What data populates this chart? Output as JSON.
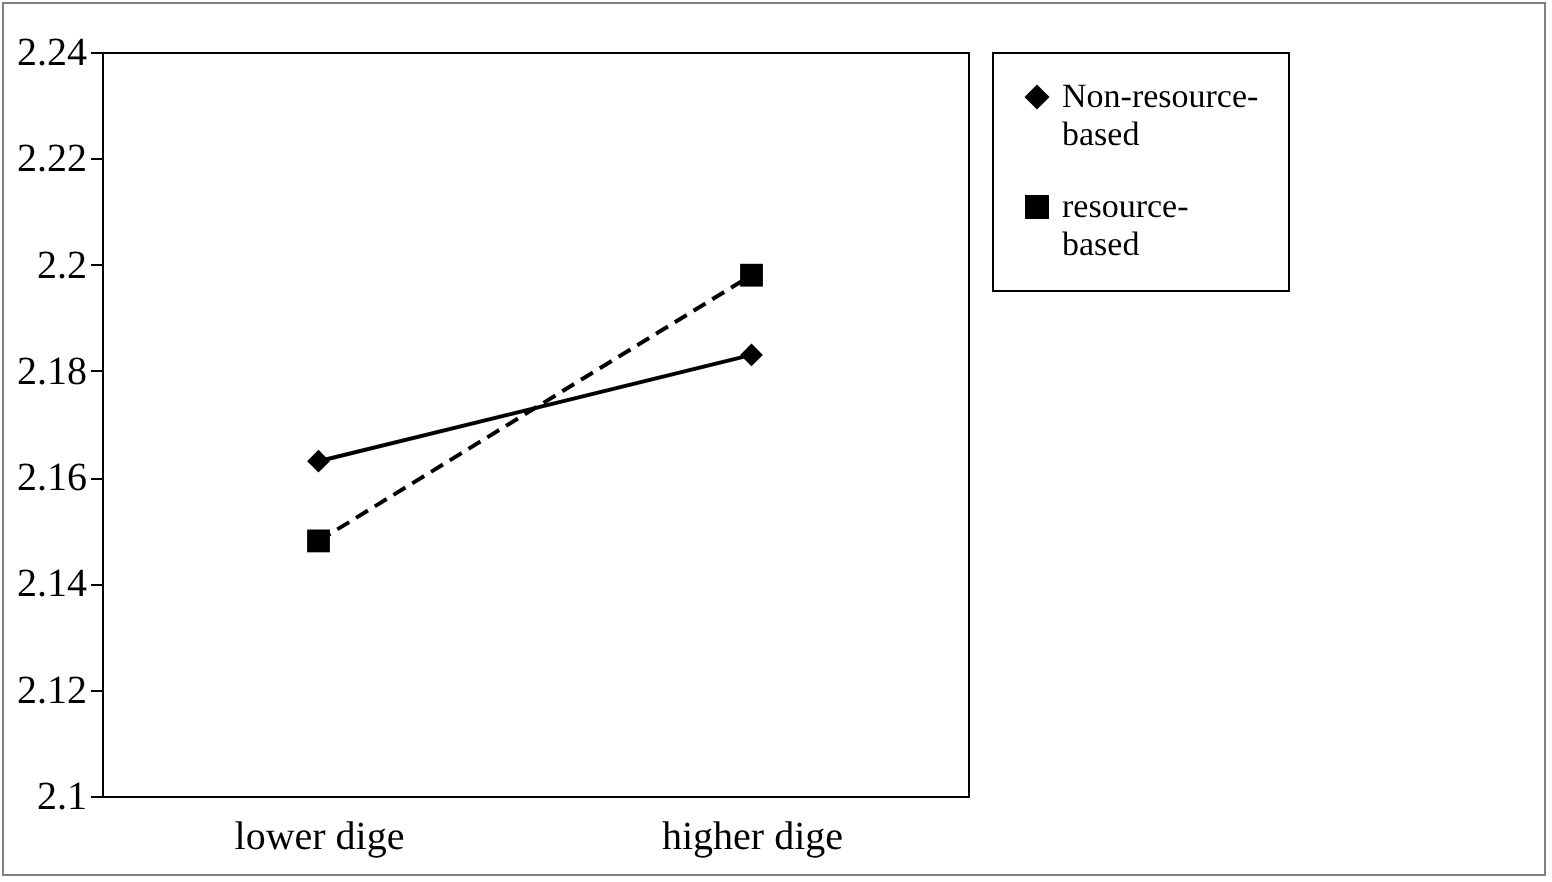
{
  "chart_data": {
    "type": "line",
    "categories": [
      "lower dige",
      "higher dige"
    ],
    "series": [
      {
        "name": "Non-resource-based",
        "color": "#000000",
        "marker": "diamond",
        "line_style": "solid",
        "values": [
          2.163,
          2.183
        ]
      },
      {
        "name": "resource-based",
        "color": "#000000",
        "marker": "square",
        "line_style": "dashed",
        "values": [
          2.148,
          2.198
        ]
      }
    ],
    "ylim": [
      2.1,
      2.24
    ],
    "yticks": [
      {
        "value": 2.1,
        "label": "2.1"
      },
      2.12,
      2.14,
      2.16,
      2.18,
      {
        "value": 2.2,
        "label": "2.2"
      },
      2.22,
      2.24
    ],
    "grid": false,
    "legend": "right"
  }
}
